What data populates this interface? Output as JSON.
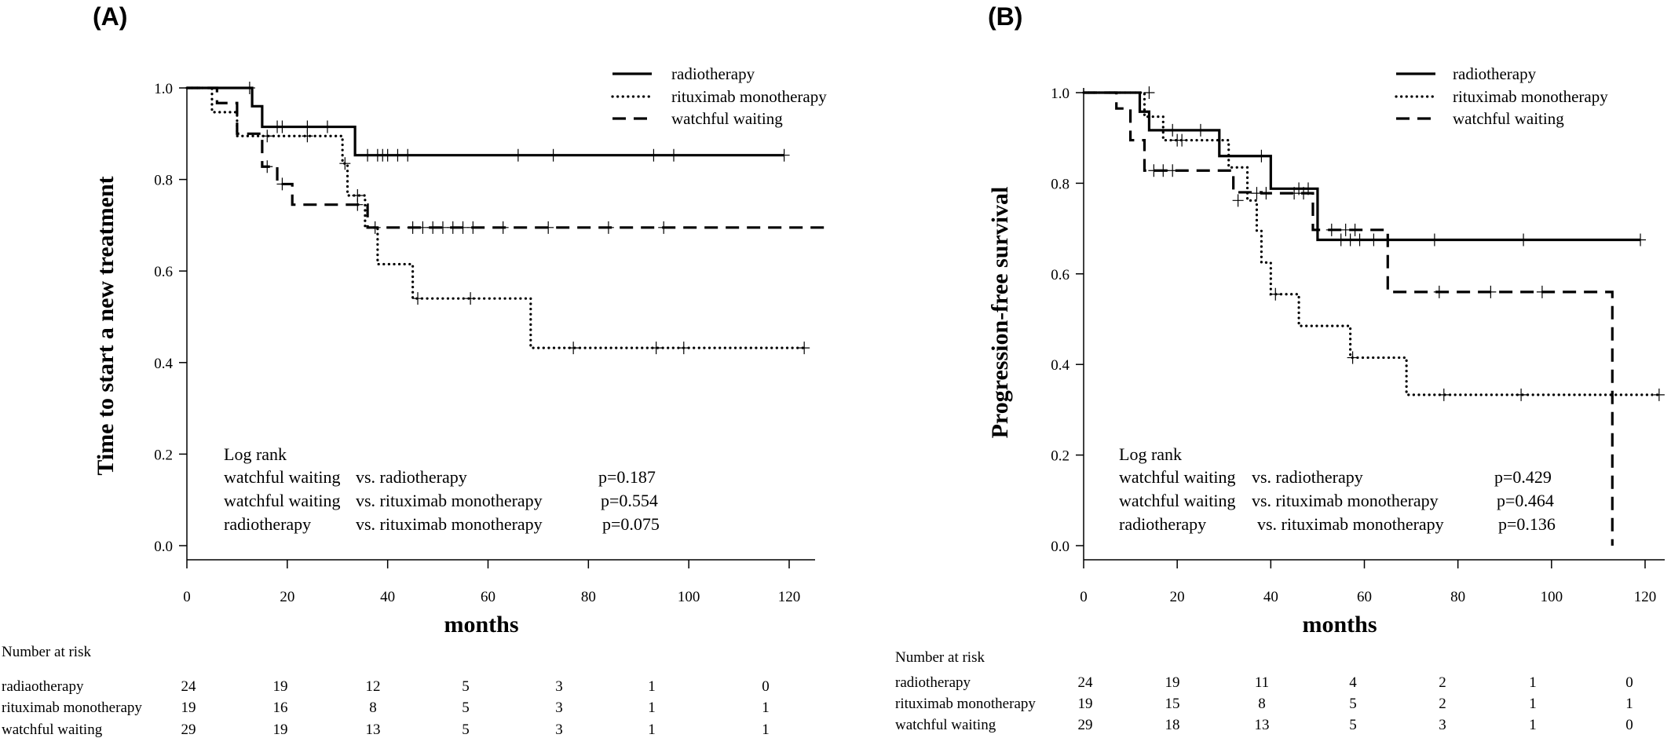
{
  "chart_data": [
    {
      "panel": "(A)",
      "type": "line",
      "xlabel": "months",
      "ylabel": "Time to start a new treatment",
      "xlim": [
        0,
        120
      ],
      "ylim": [
        0.0,
        1.0
      ],
      "xticks": [
        "0",
        "20",
        "40",
        "60",
        "80",
        "100",
        "120"
      ],
      "yticks": [
        "0.0",
        "0.2",
        "0.4",
        "0.6",
        "0.8",
        "1.0"
      ],
      "legend_position": "top-right",
      "series": [
        {
          "name": "radiotherapy",
          "style": "solid",
          "steps": [
            [
              0,
              1.0
            ],
            [
              13,
              0.96
            ],
            [
              15,
              0.915
            ],
            [
              33.5,
              0.853
            ],
            [
              119,
              0.853
            ]
          ],
          "censors": [
            [
              12.5,
              1.0
            ],
            [
              18,
              0.915
            ],
            [
              19,
              0.915
            ],
            [
              24,
              0.915
            ],
            [
              28,
              0.915
            ],
            [
              36,
              0.853
            ],
            [
              38,
              0.853
            ],
            [
              39,
              0.853
            ],
            [
              40,
              0.853
            ],
            [
              42,
              0.853
            ],
            [
              44,
              0.853
            ],
            [
              66,
              0.853
            ],
            [
              73,
              0.853
            ],
            [
              93,
              0.853
            ],
            [
              97,
              0.853
            ],
            [
              119,
              0.853
            ]
          ]
        },
        {
          "name": "rituximab monotherapy",
          "style": "dotted",
          "steps": [
            [
              0,
              1.0
            ],
            [
              5,
              0.947
            ],
            [
              10,
              0.895
            ],
            [
              31,
              0.835
            ],
            [
              32,
              0.765
            ],
            [
              35.5,
              0.695
            ],
            [
              38,
              0.615
            ],
            [
              45,
              0.54
            ],
            [
              68.5,
              0.432
            ],
            [
              123,
              0.432
            ]
          ],
          "censors": [
            [
              16,
              0.895
            ],
            [
              24,
              0.895
            ],
            [
              31.5,
              0.835
            ],
            [
              34,
              0.765
            ],
            [
              46,
              0.54
            ],
            [
              56.5,
              0.54
            ],
            [
              77,
              0.432
            ],
            [
              93.5,
              0.432
            ],
            [
              99,
              0.432
            ],
            [
              123,
              0.432
            ]
          ]
        },
        {
          "name": "watchful waiting",
          "style": "dashed",
          "steps": [
            [
              0,
              1.0
            ],
            [
              6,
              0.967
            ],
            [
              10,
              0.9
            ],
            [
              15,
              0.828
            ],
            [
              18,
              0.79
            ],
            [
              21,
              0.745
            ],
            [
              36,
              0.695
            ],
            [
              127,
              0.695
            ]
          ],
          "censors": [
            [
              16,
              0.828
            ],
            [
              19,
              0.79
            ],
            [
              34,
              0.745
            ],
            [
              37.5,
              0.695
            ],
            [
              45,
              0.695
            ],
            [
              47,
              0.695
            ],
            [
              49,
              0.695
            ],
            [
              51,
              0.695
            ],
            [
              53,
              0.695
            ],
            [
              55,
              0.695
            ],
            [
              57,
              0.695
            ],
            [
              63,
              0.695
            ],
            [
              72,
              0.695
            ],
            [
              84,
              0.695
            ],
            [
              95,
              0.695
            ]
          ]
        }
      ],
      "logrank": {
        "title": "Log rank",
        "rows": [
          {
            "a": "watchful waiting",
            "b": "vs. radiotherapy",
            "p": "p=0.187"
          },
          {
            "a": "watchful waiting",
            "b": "vs. rituximab monotherapy",
            "p": "p=0.554"
          },
          {
            "a": "radiotherapy",
            "b": "vs. rituximab monotherapy",
            "p": "p=0.075"
          }
        ]
      },
      "risk_table": {
        "title": "Number at risk",
        "rows": [
          {
            "label": "radiaotherapy",
            "values": [
              "24",
              "19",
              "12",
              "5",
              "3",
              "1",
              "0"
            ]
          },
          {
            "label": "rituximab monotherapy",
            "values": [
              "19",
              "16",
              "8",
              "5",
              "3",
              "1",
              "1"
            ]
          },
          {
            "label": "watchful waiting",
            "values": [
              "29",
              "19",
              "13",
              "5",
              "3",
              "1",
              "1"
            ]
          }
        ]
      }
    },
    {
      "panel": "(B)",
      "type": "line",
      "xlabel": "months",
      "ylabel": "Progression-free survival",
      "xlim": [
        0,
        120
      ],
      "ylim": [
        0.0,
        1.0
      ],
      "xticks": [
        "0",
        "20",
        "40",
        "60",
        "80",
        "100",
        "120"
      ],
      "yticks": [
        "0.0",
        "0.2",
        "0.4",
        "0.6",
        "0.8",
        "1.0"
      ],
      "legend_position": "top-right",
      "series": [
        {
          "name": "radiotherapy",
          "style": "solid",
          "steps": [
            [
              0,
              1.0
            ],
            [
              12,
              0.958
            ],
            [
              14,
              0.917
            ],
            [
              29,
              0.86
            ],
            [
              40,
              0.788
            ],
            [
              50,
              0.675
            ],
            [
              119,
              0.675
            ]
          ],
          "censors": [
            [
              19,
              0.917
            ],
            [
              25,
              0.917
            ],
            [
              38,
              0.86
            ],
            [
              46,
              0.788
            ],
            [
              48,
              0.788
            ],
            [
              55,
              0.675
            ],
            [
              57,
              0.675
            ],
            [
              59,
              0.675
            ],
            [
              62,
              0.675
            ],
            [
              75,
              0.675
            ],
            [
              94,
              0.675
            ],
            [
              119,
              0.675
            ]
          ]
        },
        {
          "name": "rituximab monotherapy",
          "style": "dotted",
          "steps": [
            [
              0,
              1.0
            ],
            [
              13,
              0.947
            ],
            [
              17,
              0.895
            ],
            [
              31,
              0.835
            ],
            [
              35,
              0.762
            ],
            [
              37,
              0.695
            ],
            [
              38,
              0.625
            ],
            [
              40,
              0.555
            ],
            [
              46,
              0.485
            ],
            [
              57,
              0.415
            ],
            [
              69,
              0.333
            ],
            [
              123,
              0.333
            ]
          ],
          "censors": [
            [
              14,
              1.0
            ],
            [
              20,
              0.895
            ],
            [
              21,
              0.895
            ],
            [
              33,
              0.762
            ],
            [
              41,
              0.555
            ],
            [
              57.5,
              0.415
            ],
            [
              77,
              0.333
            ],
            [
              93.5,
              0.333
            ],
            [
              123,
              0.333
            ]
          ]
        },
        {
          "name": "watchful waiting",
          "style": "dashed",
          "steps": [
            [
              0,
              1.0
            ],
            [
              7,
              0.965
            ],
            [
              10,
              0.895
            ],
            [
              13,
              0.828
            ],
            [
              32,
              0.78
            ],
            [
              38,
              0.778
            ],
            [
              49,
              0.697
            ],
            [
              65,
              0.56
            ],
            [
              113,
              0.56
            ],
            [
              113,
              0.0
            ]
          ],
          "censors": [
            [
              15,
              0.828
            ],
            [
              17,
              0.828
            ],
            [
              19,
              0.828
            ],
            [
              37,
              0.778
            ],
            [
              39,
              0.778
            ],
            [
              45,
              0.778
            ],
            [
              47,
              0.778
            ],
            [
              53,
              0.697
            ],
            [
              56,
              0.697
            ],
            [
              58,
              0.697
            ],
            [
              76,
              0.56
            ],
            [
              87,
              0.56
            ],
            [
              98,
              0.56
            ]
          ]
        }
      ],
      "logrank": {
        "title": "Log rank",
        "rows": [
          {
            "a": "watchful waiting",
            "b": "vs. radiotherapy",
            "p": "p=0.429"
          },
          {
            "a": "watchful waiting",
            "b": "vs. rituximab monotherapy",
            "p": "p=0.464"
          },
          {
            "a": "radiotherapy",
            "b": "vs. rituximab monotherapy",
            "p": "p=0.136"
          }
        ]
      },
      "risk_table": {
        "title": "Number at risk",
        "rows": [
          {
            "label": "radiotherapy",
            "values": [
              "24",
              "19",
              "11",
              "4",
              "2",
              "1",
              "0"
            ]
          },
          {
            "label": "rituximab monotherapy",
            "values": [
              "19",
              "15",
              "8",
              "5",
              "2",
              "1",
              "1"
            ]
          },
          {
            "label": "watchful waiting",
            "values": [
              "29",
              "18",
              "13",
              "5",
              "3",
              "1",
              "0"
            ]
          }
        ]
      }
    }
  ]
}
